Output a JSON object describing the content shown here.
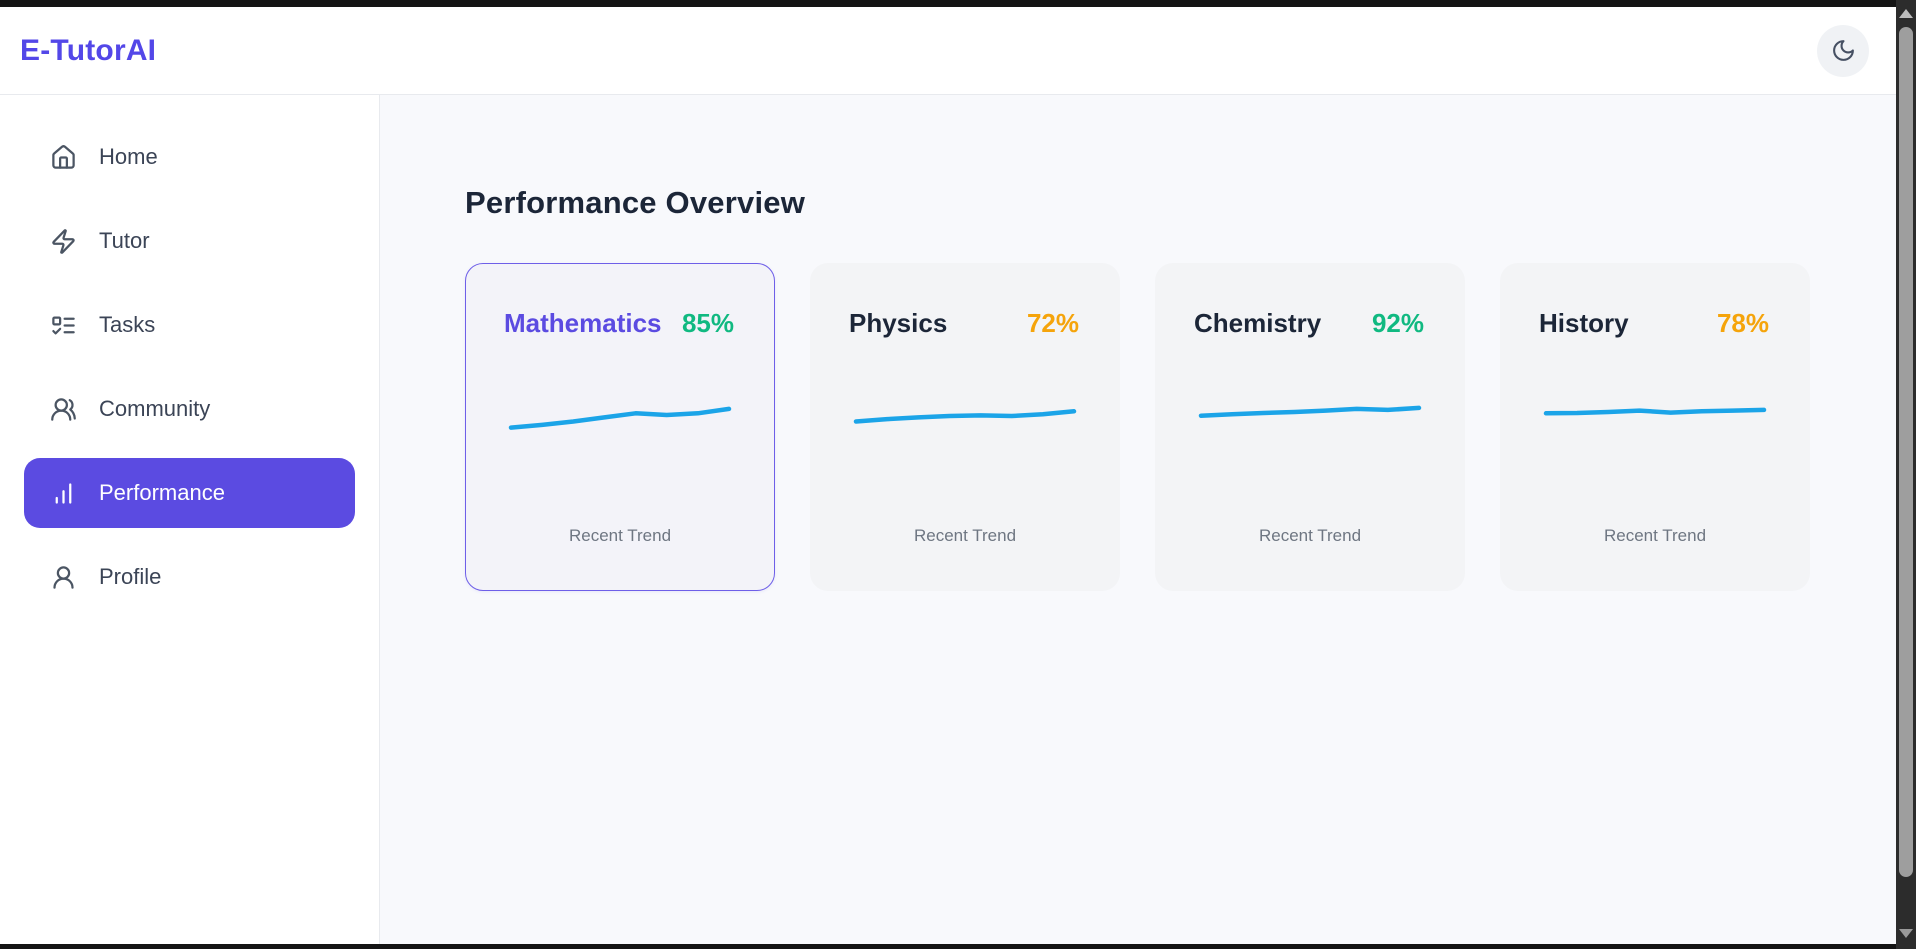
{
  "app": {
    "name": "E-TutorAI"
  },
  "header": {
    "logo": "E-TutorAI",
    "theme_toggle_icon": "moon-icon"
  },
  "sidebar": {
    "items": [
      {
        "label": "Home",
        "icon": "home-icon",
        "active": false
      },
      {
        "label": "Tutor",
        "icon": "zap-icon",
        "active": false
      },
      {
        "label": "Tasks",
        "icon": "tasks-icon",
        "active": false
      },
      {
        "label": "Community",
        "icon": "users-icon",
        "active": false
      },
      {
        "label": "Performance",
        "icon": "bar-chart-icon",
        "active": true
      },
      {
        "label": "Profile",
        "icon": "user-icon",
        "active": false
      }
    ]
  },
  "main": {
    "title": "Performance Overview",
    "trend_label": "Recent Trend",
    "cards": [
      {
        "subject": "Mathematics",
        "score": "85%",
        "score_color": "#10b981",
        "selected": true,
        "trend": [
          0.1,
          0.18,
          0.28,
          0.4,
          0.52,
          0.47,
          0.52,
          0.65
        ]
      },
      {
        "subject": "Physics",
        "score": "72%",
        "score_color": "#f5a40b",
        "selected": false,
        "trend": [
          0.28,
          0.35,
          0.4,
          0.44,
          0.46,
          0.44,
          0.49,
          0.58
        ]
      },
      {
        "subject": "Chemistry",
        "score": "92%",
        "score_color": "#10b981",
        "selected": false,
        "trend": [
          0.45,
          0.49,
          0.53,
          0.56,
          0.6,
          0.65,
          0.62,
          0.68
        ]
      },
      {
        "subject": "History",
        "score": "78%",
        "score_color": "#f5a40b",
        "selected": false,
        "trend": [
          0.52,
          0.53,
          0.56,
          0.6,
          0.54,
          0.58,
          0.6,
          0.62
        ]
      }
    ]
  },
  "colors": {
    "accent": "#5347e8",
    "accent_strong": "#5b4be1",
    "sparkline": "#1ba4e8",
    "score_green": "#10b981",
    "score_amber": "#f5a40b",
    "main_bg": "#f8f9fc",
    "card_bg": "#f3f4f6",
    "selected_card_border": "#6e5fe8"
  }
}
